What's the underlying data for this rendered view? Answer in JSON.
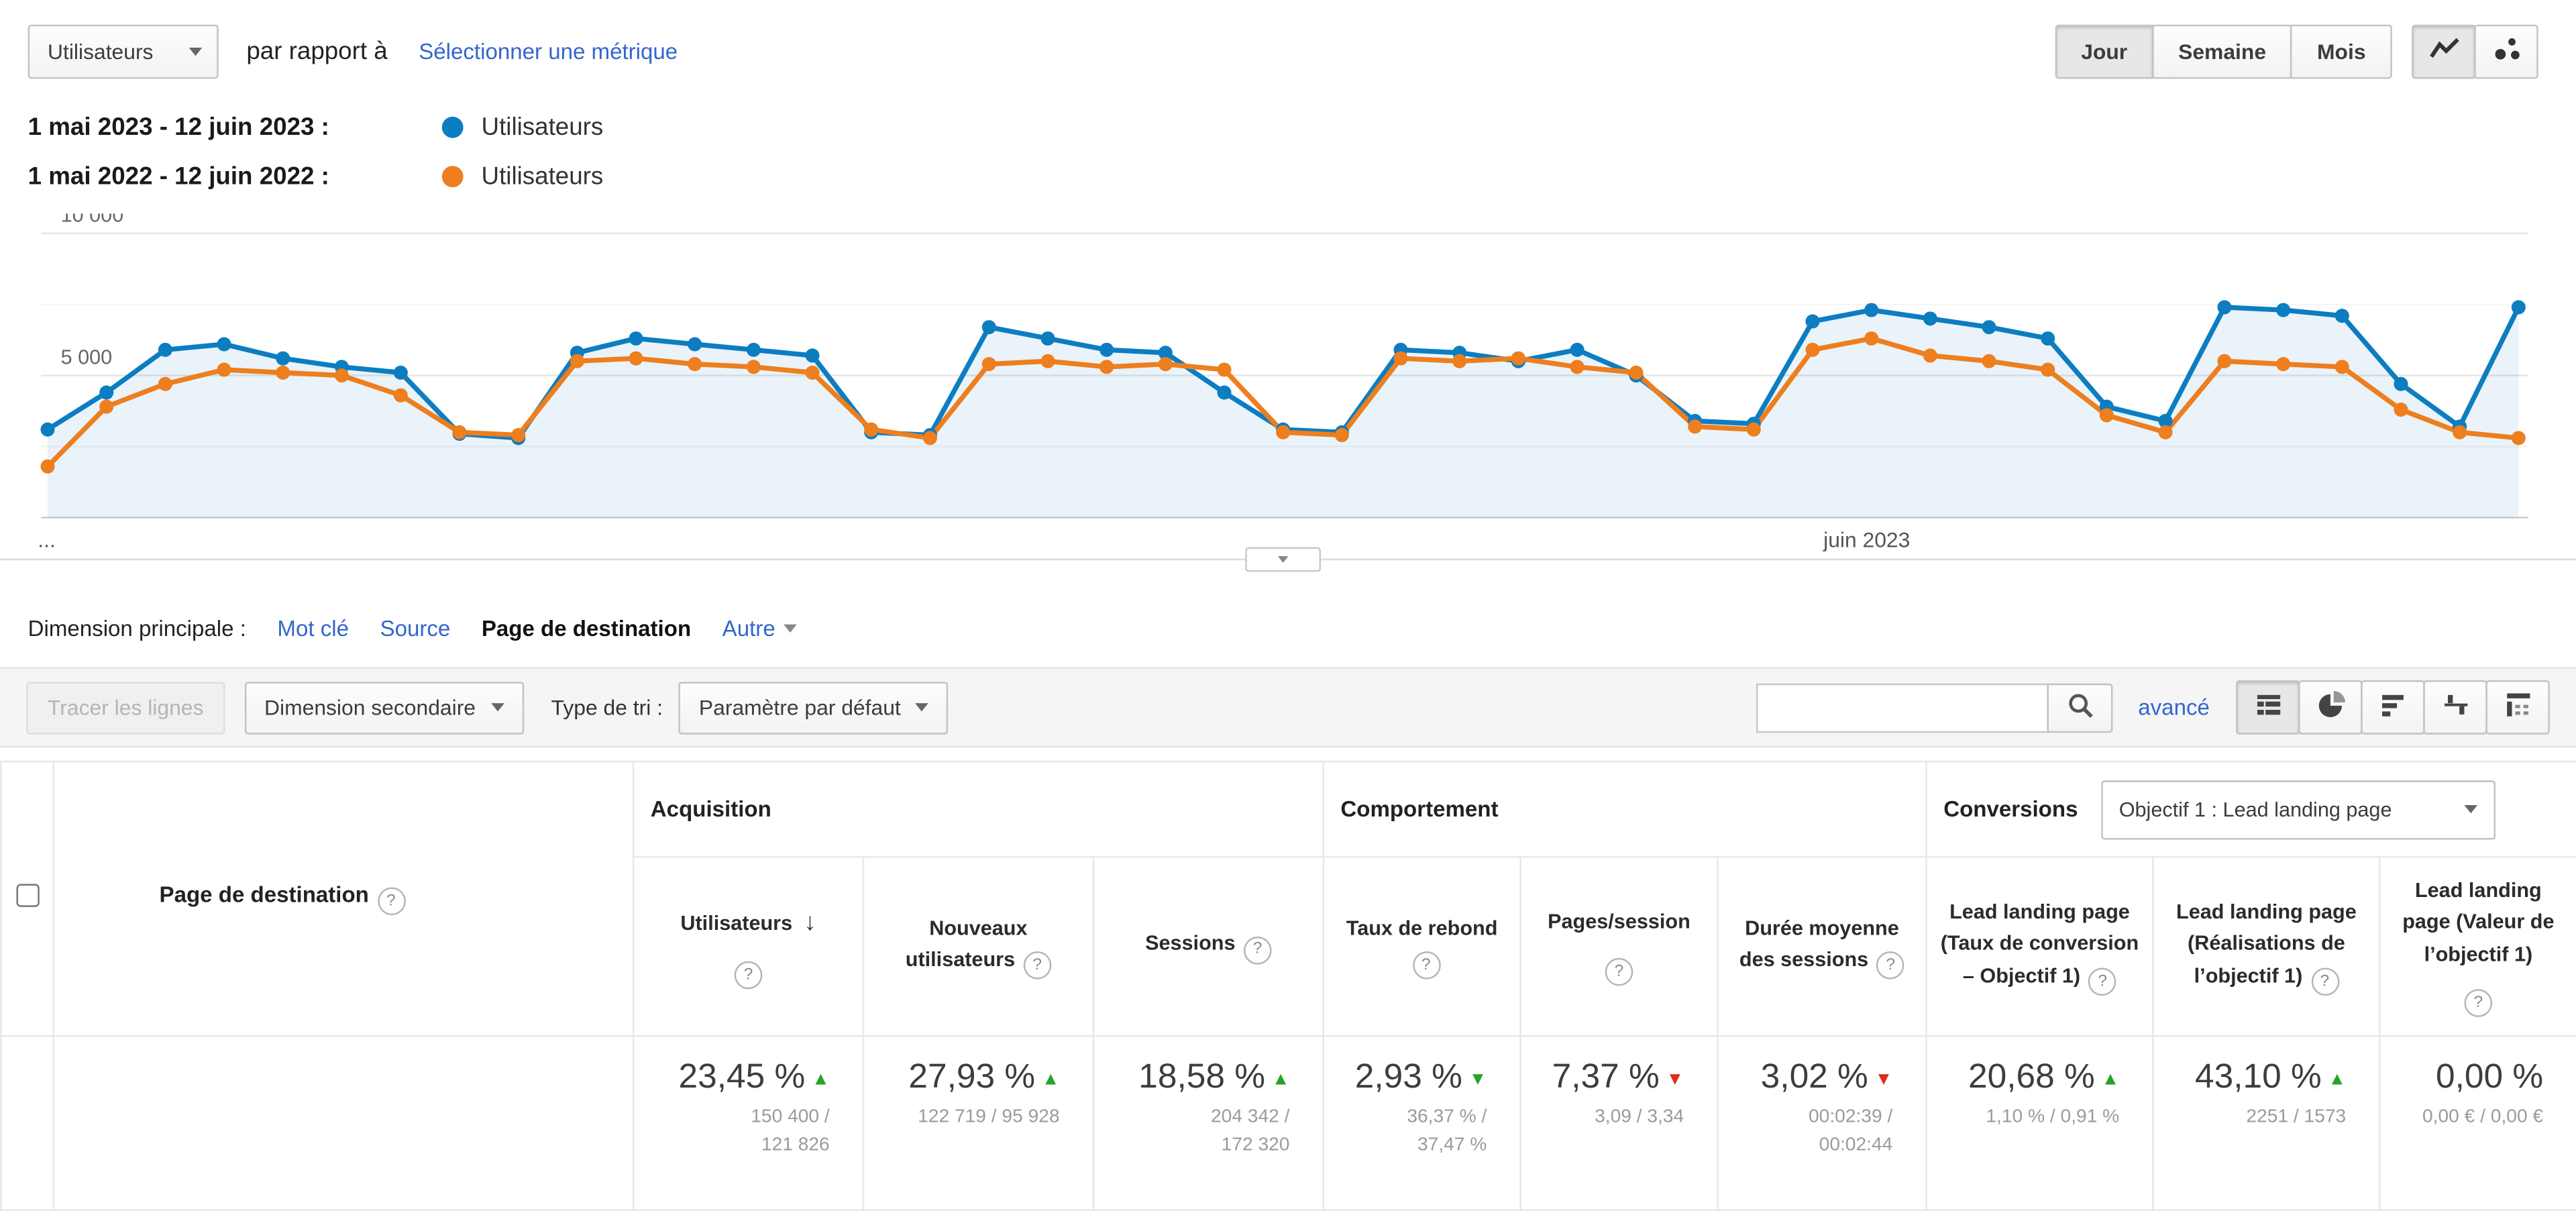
{
  "colors": {
    "link": "#3366cc",
    "positive": "#27a327",
    "negative": "#dd2c1a",
    "series_current": "#0d7dc1",
    "series_previous": "#ee7e1e",
    "chart_area": "rgba(13,125,193,0.09)"
  },
  "header": {
    "metric_selector": "Utilisateurs",
    "compare_label": "par rapport à",
    "select_metric_link": "Sélectionner une métrique",
    "granularity": [
      "Jour",
      "Semaine",
      "Mois"
    ],
    "granularity_active": "Jour",
    "chart_type_icons": [
      "line-chart",
      "motion-chart"
    ]
  },
  "legend": [
    {
      "range": "1 mai 2023 - 12 juin 2023 :",
      "series": "Utilisateurs"
    },
    {
      "range": "1 mai 2022 - 12 juin 2022 :",
      "series": "Utilisateurs"
    }
  ],
  "chart_data": {
    "type": "line",
    "metric": "Utilisateurs",
    "granularity": "Jour",
    "ylim": [
      0,
      10000
    ],
    "grid": true,
    "yticks": [
      {
        "value": 10000,
        "label": "10 000"
      },
      {
        "value": 5000,
        "label": "5 000"
      }
    ],
    "xticks": [
      {
        "label": "...",
        "position": 0.0
      },
      {
        "label": "juin 2023",
        "position": 0.734
      }
    ],
    "series": [
      {
        "name": "Utilisateurs (1 mai 2023 - 12 juin 2023)",
        "color": "#0d7dc1",
        "area": true,
        "values": [
          3100,
          4400,
          5900,
          6100,
          5600,
          5300,
          5100,
          2950,
          2800,
          5800,
          6300,
          6100,
          5900,
          5700,
          3000,
          2900,
          6700,
          6300,
          5900,
          5800,
          4400,
          3100,
          3000,
          5900,
          5800,
          5500,
          5900,
          5000,
          3400,
          3300,
          6900,
          7300,
          7000,
          6700,
          6300,
          3900,
          3400,
          7400,
          7300,
          7100,
          4700,
          3200,
          7400
        ]
      },
      {
        "name": "Utilisateurs (1 mai 2022 - 12 juin 2022)",
        "color": "#ee7e1e",
        "area": false,
        "values": [
          1800,
          3900,
          4700,
          5200,
          5100,
          5000,
          4300,
          3000,
          2900,
          5500,
          5600,
          5400,
          5300,
          5100,
          3100,
          2800,
          5400,
          5500,
          5300,
          5400,
          5200,
          3000,
          2900,
          5600,
          5500,
          5600,
          5300,
          5100,
          3200,
          3100,
          5900,
          6300,
          5700,
          5500,
          5200,
          3600,
          3000,
          5500,
          5400,
          5300,
          3800,
          3000,
          2800
        ]
      }
    ]
  },
  "dimension_bar": {
    "label": "Dimension principale :",
    "links": [
      "Mot clé",
      "Source"
    ],
    "active": "Page de destination",
    "more": "Autre"
  },
  "toolbar": {
    "plot_rows": "Tracer les lignes",
    "secondary_dimension": "Dimension secondaire",
    "sort_type_label": "Type de tri :",
    "sort_type_value": "Paramètre par défaut",
    "search_value": "",
    "advanced_link": "avancé",
    "views": [
      "table",
      "percentage",
      "performance",
      "comparison",
      "pivot"
    ],
    "views_active": "table"
  },
  "table": {
    "row_header": {
      "label": "Page de destination"
    },
    "groups": [
      {
        "label": "Acquisition"
      },
      {
        "label": "Comportement"
      },
      {
        "label": "Conversions",
        "selector": "Objectif 1 : Lead landing page"
      }
    ],
    "columns": [
      {
        "key": "utilisateurs",
        "label": "Utilisateurs",
        "sorted": "desc",
        "help_below": true
      },
      {
        "key": "nouveaux-utilisateurs",
        "label": "Nouveaux utilisateurs"
      },
      {
        "key": "sessions",
        "label": "Sessions"
      },
      {
        "key": "taux-de-rebond",
        "label": "Taux de rebond"
      },
      {
        "key": "pages-session",
        "label": "Pages/session",
        "help_below": true
      },
      {
        "key": "duree-moyenne-sessions",
        "label": "Durée moyenne des sessions"
      },
      {
        "key": "lead-conversion-rate",
        "label": "Lead landing page (Taux de conversion – Objectif 1)"
      },
      {
        "key": "lead-completions",
        "label": "Lead landing page (Réalisations de l’objectif 1)"
      },
      {
        "key": "lead-value",
        "label": "Lead landing page (Valeur de l’objectif 1)",
        "help_below": true
      }
    ],
    "summary": [
      {
        "value": "23,45 %",
        "trend": "up",
        "trend_color": "positive",
        "sub": "150 400 /\n121 826"
      },
      {
        "value": "27,93 %",
        "trend": "up",
        "trend_color": "positive",
        "sub": "122 719 / 95 928"
      },
      {
        "value": "18,58 %",
        "trend": "up",
        "trend_color": "positive",
        "sub": "204 342 /\n172 320"
      },
      {
        "value": "2,93 %",
        "trend": "down",
        "trend_color": "positive",
        "sub": "36,37 % /\n37,47 %"
      },
      {
        "value": "7,37 %",
        "trend": "down",
        "trend_color": "negative",
        "sub": "3,09 / 3,34"
      },
      {
        "value": "3,02 %",
        "trend": "down",
        "trend_color": "negative",
        "sub": "00:02:39 /\n00:02:44"
      },
      {
        "value": "20,68 %",
        "trend": "up",
        "trend_color": "positive",
        "sub": "1,10 % / 0,91 %"
      },
      {
        "value": "43,10 %",
        "trend": "up",
        "trend_color": "positive",
        "sub": "2251 / 1573"
      },
      {
        "value": "0,00 %",
        "trend": "none",
        "trend_color": "none",
        "sub": "0,00 € / 0,00 €"
      }
    ]
  }
}
